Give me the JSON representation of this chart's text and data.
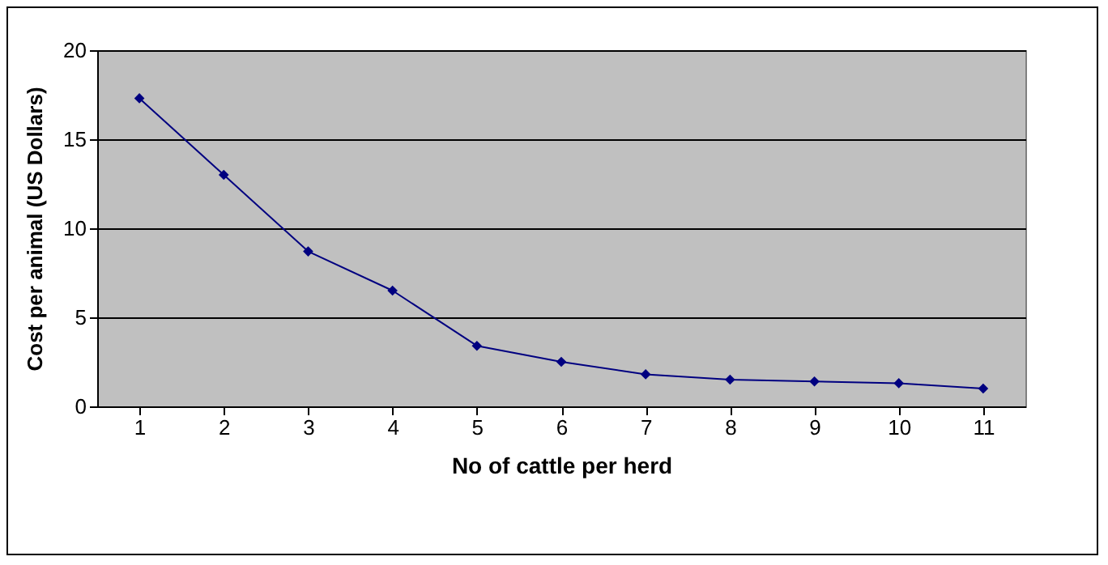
{
  "chart_data": {
    "type": "line",
    "xlabel": "No of cattle per herd",
    "ylabel": "Cost per animal (US Dollars)",
    "categories": [
      "1",
      "2",
      "3",
      "4",
      "5",
      "6",
      "7",
      "8",
      "9",
      "10",
      "11"
    ],
    "series": [
      {
        "color": "#000080",
        "values": [
          17.3,
          13.0,
          8.7,
          6.5,
          3.4,
          2.5,
          1.8,
          1.5,
          1.4,
          1.3,
          1.0
        ]
      }
    ],
    "ylim": [
      0,
      20
    ],
    "yticks": [
      0,
      5,
      10,
      15,
      20
    ],
    "grid": "y",
    "marker": "diamond",
    "line_style": "solid"
  }
}
